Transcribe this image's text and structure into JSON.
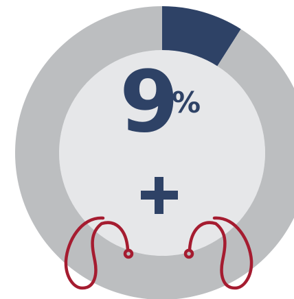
{
  "chart_data": {
    "type": "pie",
    "variant": "donut",
    "values": [
      9,
      91
    ],
    "colors": [
      "#2e4266",
      "#bcbec0"
    ],
    "center_color": "#e6e7e9",
    "label": {
      "number": "9",
      "unit": "%"
    },
    "title": "",
    "legend": "none"
  },
  "icons": {
    "plus": "plus-icon",
    "hearing_aid_left": "hearing-aid-left-icon",
    "hearing_aid_right": "hearing-aid-right-icon"
  },
  "colors": {
    "accent": "#2e4266",
    "ring": "#bcbec0",
    "center": "#e6e7e9",
    "hearing_aid": "#a51c30"
  }
}
